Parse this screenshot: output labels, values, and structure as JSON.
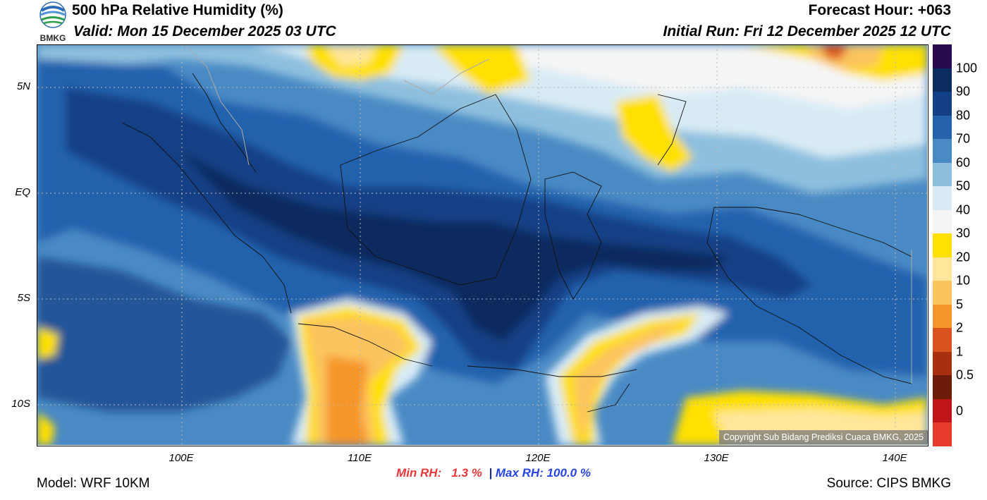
{
  "header": {
    "title": "500 hPa Relative Humidity (%)",
    "valid": "Valid: Mon 15 December 2025 03 UTC",
    "forecast_hour": "Forecast Hour: +063",
    "initial_run": "Initial Run: Fri 12 December 2025 12 UTC",
    "logo_text": "BMKG"
  },
  "axes": {
    "latitude_labels": [
      "5N",
      "EQ",
      "5S",
      "10S"
    ],
    "longitude_labels": [
      "100E",
      "110E",
      "120E",
      "130E",
      "140E"
    ]
  },
  "stats": {
    "min_rh": "Min RH:   1.3 %",
    "separator": "|",
    "max_rh": "Max RH: 100.0 %"
  },
  "footer": {
    "model": "Model: WRF 10KM",
    "source": "Source: CIPS BMKG",
    "copyright": "Copyright Sub Bidang Prediksi Cuaca BMKG, 2025"
  },
  "colorbar": {
    "labels": [
      "100",
      "90",
      "80",
      "70",
      "60",
      "50",
      "40",
      "30",
      "20",
      "10",
      "5",
      "2",
      "1",
      "0.5",
      "0"
    ],
    "colors": [
      "#2a0a4e",
      "#0b2c5e",
      "#123f85",
      "#2462ad",
      "#4a8ac4",
      "#8ec0de",
      "#d8ebf5",
      "#f5f5f5",
      "#ffe000",
      "#ffe69a",
      "#fcc45e",
      "#f6962a",
      "#d9531e",
      "#a8300e",
      "#6e1c0a",
      "#c01518",
      "#e83a2a"
    ]
  }
}
